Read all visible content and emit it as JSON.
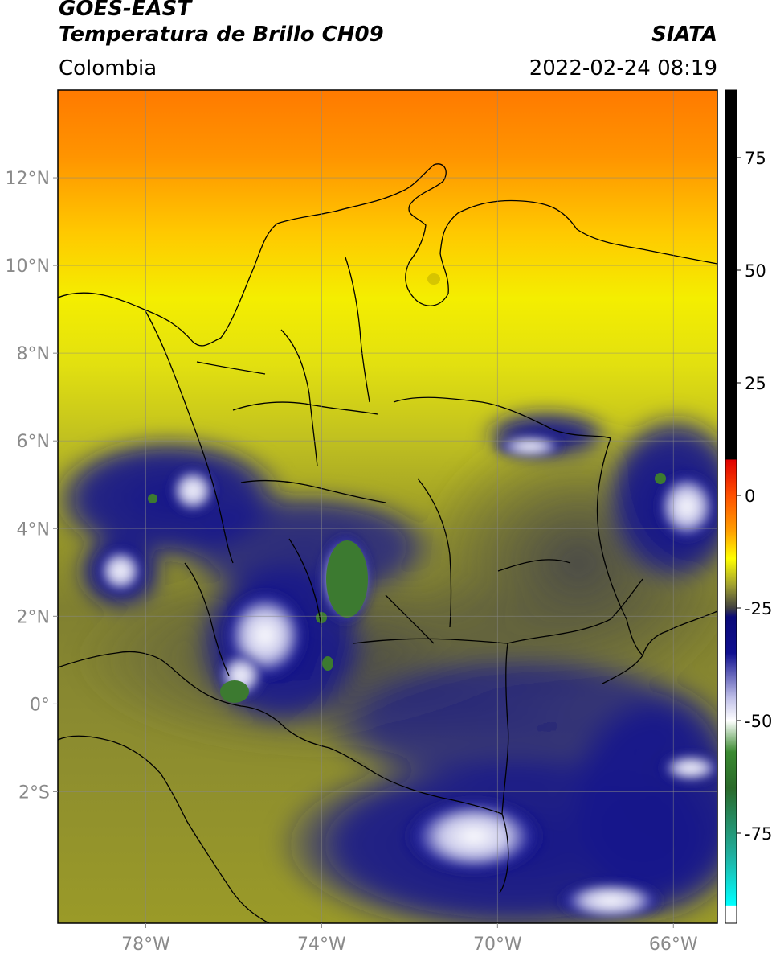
{
  "header": {
    "title_line1": "GOES-EAST",
    "title_line2": "Temperatura de Brillo CH09",
    "organization": "SIATA",
    "region": "Colombia",
    "timestamp": "2022-02-24 08:19"
  },
  "map": {
    "lon_range": [
      -80,
      -65
    ],
    "lat_range": [
      -5,
      14
    ],
    "lon_ticks": [
      {
        "value": -78,
        "label": "78°W"
      },
      {
        "value": -74,
        "label": "74°W"
      },
      {
        "value": -70,
        "label": "70°W"
      },
      {
        "value": -66,
        "label": "66°W"
      }
    ],
    "lat_ticks": [
      {
        "value": 12,
        "label": "12°N"
      },
      {
        "value": 10,
        "label": "10°N"
      },
      {
        "value": 8,
        "label": "8°N"
      },
      {
        "value": 6,
        "label": "6°N"
      },
      {
        "value": 4,
        "label": "4°N"
      },
      {
        "value": 2,
        "label": "2°N"
      },
      {
        "value": 0,
        "label": "0°"
      },
      {
        "value": -2,
        "label": "2°S"
      }
    ],
    "grid": true
  },
  "colorbar": {
    "range": [
      -95,
      90
    ],
    "ticks": [
      {
        "value": 75,
        "label": "75"
      },
      {
        "value": 50,
        "label": "50"
      },
      {
        "value": 25,
        "label": "25"
      },
      {
        "value": 0,
        "label": "0"
      },
      {
        "value": -25,
        "label": "-25"
      },
      {
        "value": -50,
        "label": "-50"
      },
      {
        "value": -75,
        "label": "-75"
      }
    ],
    "stops": [
      {
        "value": 90,
        "color": "#000000"
      },
      {
        "value": 8,
        "color": "#000000"
      },
      {
        "value": 7.9,
        "color": "#e00000"
      },
      {
        "value": 0,
        "color": "#ff5000"
      },
      {
        "value": -8,
        "color": "#ffa000"
      },
      {
        "value": -14,
        "color": "#ffff00"
      },
      {
        "value": -20,
        "color": "#a0a030"
      },
      {
        "value": -25,
        "color": "#404040"
      },
      {
        "value": -27,
        "color": "#0a0a78"
      },
      {
        "value": -35,
        "color": "#101090"
      },
      {
        "value": -45,
        "color": "#c0c0e8"
      },
      {
        "value": -50,
        "color": "#ffffff"
      },
      {
        "value": -57,
        "color": "#3a8a30"
      },
      {
        "value": -65,
        "color": "#2a6a2a"
      },
      {
        "value": -80,
        "color": "#20b0a0"
      },
      {
        "value": -91,
        "color": "#00ffff"
      },
      {
        "value": -91.1,
        "color": "#ffffff"
      },
      {
        "value": -95,
        "color": "#ffffff"
      }
    ]
  }
}
